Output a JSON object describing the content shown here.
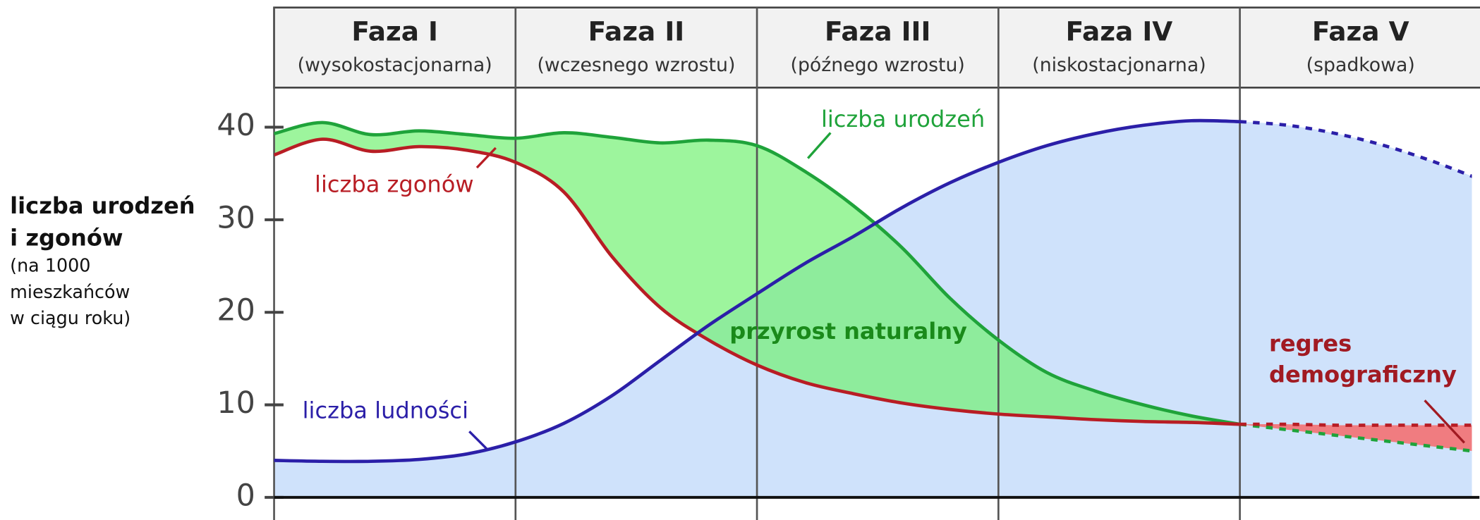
{
  "chart_data": {
    "type": "line",
    "phases": [
      {
        "name": "Faza I",
        "subtitle": "(wysokostacjonarna)"
      },
      {
        "name": "Faza II",
        "subtitle": "(wczesnego wzrostu)"
      },
      {
        "name": "Faza III",
        "subtitle": "(późnego wzrostu)"
      },
      {
        "name": "Faza IV",
        "subtitle": "(niskostacjonarna)"
      },
      {
        "name": "Faza V",
        "subtitle": "(spadkowa)"
      }
    ],
    "y_label": [
      "liczba urodzeń",
      "i zgonów",
      "(na 1000",
      "mieszkańców",
      "w ciągu roku)"
    ],
    "categories": [
      null,
      null,
      null,
      null,
      null,
      null,
      null,
      null,
      null,
      null,
      null,
      null,
      null,
      null,
      null,
      null,
      null,
      null,
      null,
      null,
      null,
      null,
      null,
      null,
      null,
      null
    ],
    "dashed_from": 20,
    "series": [
      {
        "name": "liczba urodzeń",
        "color": "#1fa33a",
        "values": [
          39.3,
          40.5,
          39.2,
          39.6,
          39.2,
          38.8,
          39.4,
          38.9,
          38.3,
          38.6,
          38.0,
          35.2,
          31.5,
          27,
          21.5,
          17,
          13.5,
          11.5,
          10,
          8.8,
          7.9,
          7.3,
          6.7,
          6.1,
          5.5,
          4.9
        ]
      },
      {
        "name": "liczba zgonów",
        "color": "#b81d24",
        "values": [
          37,
          38.7,
          37.4,
          37.9,
          37.5,
          36.2,
          33,
          26,
          20.5,
          17,
          14.3,
          12.4,
          11.2,
          10.2,
          9.5,
          9,
          8.7,
          8.4,
          8.2,
          8.1,
          7.9,
          7.9,
          7.8,
          7.8,
          7.8,
          7.8
        ]
      },
      {
        "name": "liczba ludności",
        "color": "#2b1fa8",
        "values": [
          4,
          3.9,
          3.9,
          4.1,
          4.7,
          6,
          8,
          11,
          14.8,
          18.6,
          22,
          25.3,
          28.2,
          31.3,
          34,
          36.2,
          38,
          39.3,
          40.2,
          40.7,
          40.6,
          40.2,
          39.3,
          38,
          36.3,
          34.3
        ]
      }
    ],
    "annotations": [
      "przyrost naturalny",
      "regres",
      "demograficzny"
    ],
    "ylim": [
      0,
      40
    ],
    "yticks": [
      0,
      10,
      20,
      30,
      40
    ]
  }
}
